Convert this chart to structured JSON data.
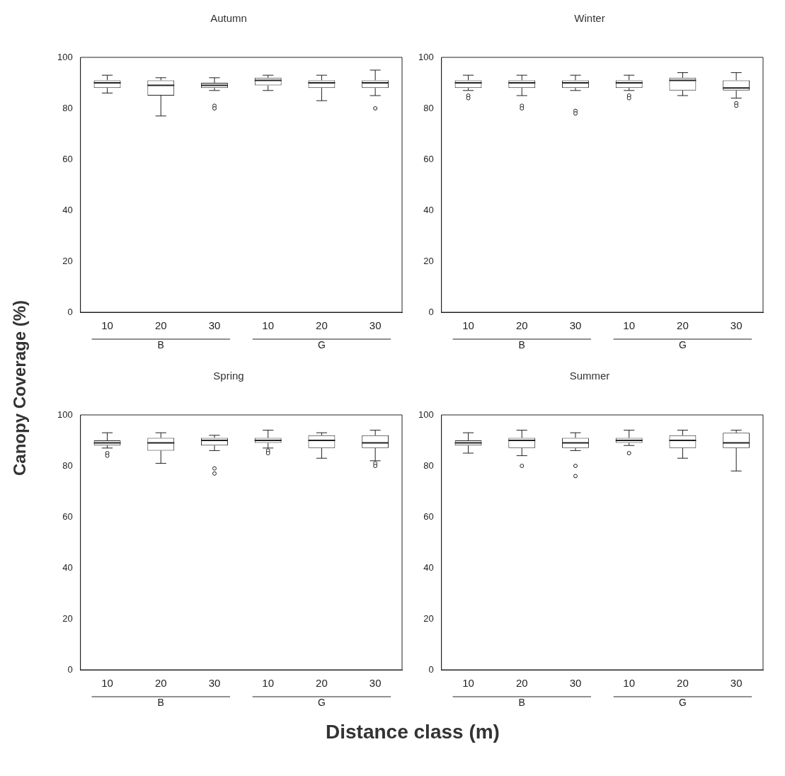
{
  "chart_data": [
    {
      "type": "box",
      "title": "Autumn",
      "ylabel": "Canopy Coverage (%)",
      "categories": [
        "10",
        "20",
        "30",
        "10",
        "20",
        "30"
      ],
      "annotations": [
        "B",
        "G"
      ],
      "ylim": [
        0,
        100
      ],
      "yticks": [
        0,
        20,
        40,
        60,
        80,
        100
      ],
      "grid": false,
      "boxes": [
        {
          "low": 86,
          "q1": 88,
          "median": 90,
          "q3": 91,
          "high": 93
        },
        {
          "low": 77,
          "q1": 85,
          "median": 89,
          "q3": 91,
          "high": 92
        },
        {
          "low": 87,
          "q1": 88,
          "median": 89,
          "q3": 90,
          "high": 92,
          "outliers": [
            81,
            80
          ]
        },
        {
          "low": 87,
          "q1": 89,
          "median": 91,
          "q3": 92,
          "high": 93
        },
        {
          "low": 83,
          "q1": 88,
          "median": 90,
          "q3": 91,
          "high": 93
        },
        {
          "low": 85,
          "q1": 88,
          "median": 90,
          "q3": 91,
          "high": 95,
          "outliers": [
            80
          ]
        }
      ]
    },
    {
      "type": "box",
      "title": "Winter",
      "categories": [
        "10",
        "20",
        "30",
        "10",
        "20",
        "30"
      ],
      "annotations": [
        "B",
        "G"
      ],
      "ylim": [
        0,
        100
      ],
      "yticks": [
        0,
        20,
        40,
        60,
        80,
        100
      ],
      "grid": false,
      "boxes": [
        {
          "low": 87,
          "q1": 88,
          "median": 90,
          "q3": 91,
          "high": 93,
          "outliers": [
            85,
            84
          ]
        },
        {
          "low": 85,
          "q1": 88,
          "median": 90,
          "q3": 91,
          "high": 93,
          "outliers": [
            81,
            80
          ]
        },
        {
          "low": 87,
          "q1": 88,
          "median": 90,
          "q3": 91,
          "high": 93,
          "outliers": [
            79,
            78
          ]
        },
        {
          "low": 87,
          "q1": 88,
          "median": 90,
          "q3": 91,
          "high": 93,
          "outliers": [
            85,
            84
          ]
        },
        {
          "low": 85,
          "q1": 87,
          "median": 91,
          "q3": 92,
          "high": 94
        },
        {
          "low": 84,
          "q1": 87,
          "median": 88,
          "q3": 91,
          "high": 94,
          "outliers": [
            82,
            81
          ]
        }
      ]
    },
    {
      "type": "box",
      "title": "Spring",
      "xlabel": "Distance class (m)",
      "categories": [
        "10",
        "20",
        "30",
        "10",
        "20",
        "30"
      ],
      "annotations": [
        "B",
        "G"
      ],
      "ylim": [
        0,
        100
      ],
      "yticks": [
        0,
        20,
        40,
        60,
        80,
        100
      ],
      "grid": false,
      "boxes": [
        {
          "low": 87,
          "q1": 88,
          "median": 89,
          "q3": 90,
          "high": 93,
          "outliers": [
            85,
            84
          ]
        },
        {
          "low": 81,
          "q1": 86,
          "median": 89,
          "q3": 91,
          "high": 93
        },
        {
          "low": 86,
          "q1": 88,
          "median": 90,
          "q3": 91,
          "high": 92,
          "outliers": [
            79,
            77
          ]
        },
        {
          "low": 87,
          "q1": 89,
          "median": 90,
          "q3": 91,
          "high": 94,
          "outliers": [
            86,
            85
          ]
        },
        {
          "low": 83,
          "q1": 87,
          "median": 90,
          "q3": 92,
          "high": 93
        },
        {
          "low": 82,
          "q1": 87,
          "median": 89,
          "q3": 92,
          "high": 94,
          "outliers": [
            81,
            80
          ]
        }
      ]
    },
    {
      "type": "box",
      "title": "Summer",
      "categories": [
        "10",
        "20",
        "30",
        "10",
        "20",
        "30"
      ],
      "annotations": [
        "B",
        "G"
      ],
      "ylim": [
        0,
        100
      ],
      "yticks": [
        0,
        20,
        40,
        60,
        80,
        100
      ],
      "grid": false,
      "boxes": [
        {
          "low": 85,
          "q1": 88,
          "median": 89,
          "q3": 90,
          "high": 93
        },
        {
          "low": 84,
          "q1": 87,
          "median": 90,
          "q3": 91,
          "high": 94,
          "outliers": [
            80
          ]
        },
        {
          "low": 86,
          "q1": 87,
          "median": 89,
          "q3": 91,
          "high": 93,
          "outliers": [
            80,
            76
          ]
        },
        {
          "low": 88,
          "q1": 89,
          "median": 90,
          "q3": 91,
          "high": 94,
          "outliers": [
            85
          ]
        },
        {
          "low": 83,
          "q1": 87,
          "median": 90,
          "q3": 92,
          "high": 94
        },
        {
          "low": 78,
          "q1": 87,
          "median": 89,
          "q3": 93,
          "high": 94
        }
      ]
    }
  ]
}
